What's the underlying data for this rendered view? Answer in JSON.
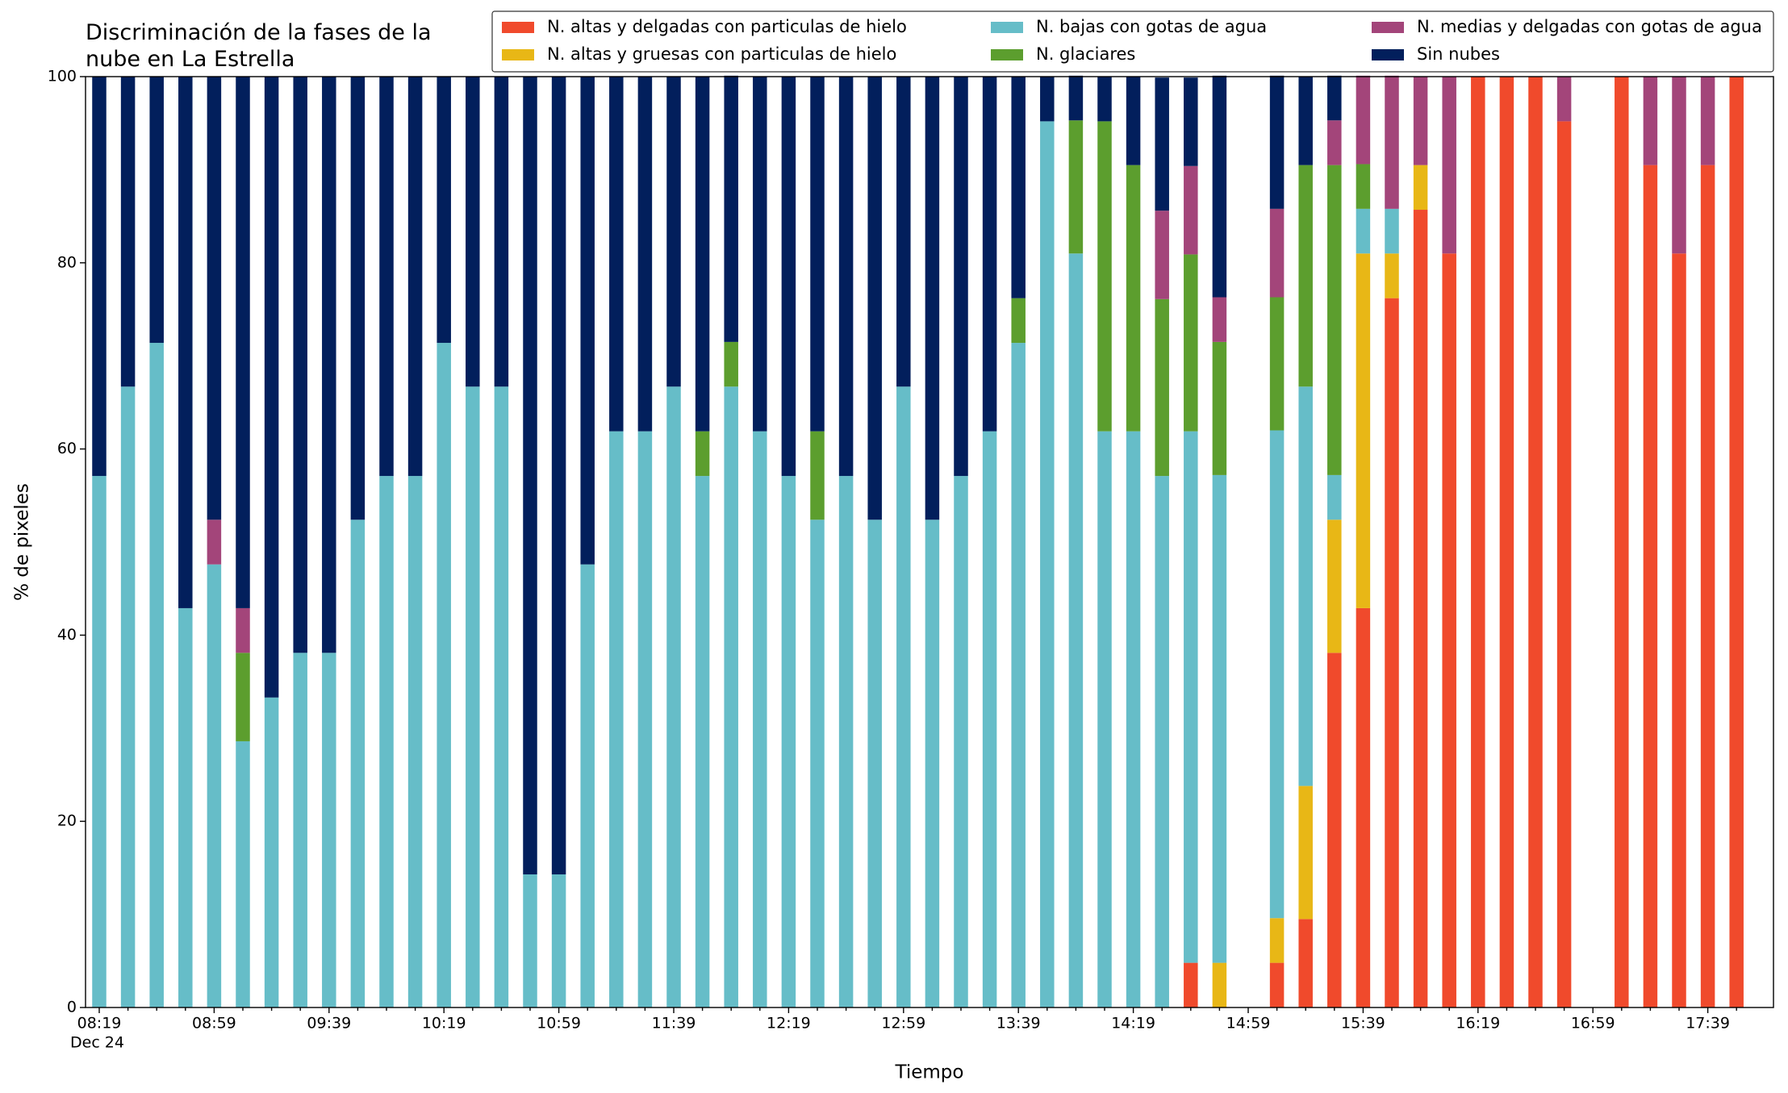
{
  "chart_data": {
    "type": "stacked_bar",
    "title": "Discriminación de la fases de la nube en La Estrella",
    "title_lines": [
      "Discriminación de la fases de la",
      "nube en La Estrella"
    ],
    "xlabel": "Tiempo",
    "ylabel": "% de pixeles",
    "x_sublabel": "Dec 24",
    "categories": [
      "08:19",
      null,
      null,
      null,
      "08:59",
      null,
      null,
      null,
      "09:39",
      null,
      null,
      null,
      "10:19",
      null,
      null,
      null,
      "10:59",
      null,
      null,
      null,
      "11:39",
      null,
      null,
      null,
      "12:19",
      null,
      null,
      null,
      "12:59",
      null,
      null,
      null,
      "13:39",
      null,
      null,
      null,
      "14:19",
      null,
      null,
      null,
      "14:59",
      null,
      null,
      null,
      "15:39",
      null,
      null,
      null,
      "16:19",
      null,
      null,
      null,
      "16:59",
      null,
      null,
      null,
      "17:39",
      null
    ],
    "ylim": [
      0,
      100
    ],
    "yticks": [
      0,
      20,
      40,
      60,
      80,
      100
    ],
    "legend": "top-right",
    "series": [
      {
        "name": "N. altas y delgadas con particulas de hielo",
        "color": "#f04a2c",
        "values": [
          0,
          0,
          0,
          0,
          0,
          0,
          0,
          0,
          0,
          0,
          0,
          0,
          0,
          0,
          0,
          0,
          0,
          0,
          0,
          0,
          0,
          0,
          0,
          0,
          0,
          0,
          0,
          0,
          0,
          0,
          0,
          0,
          0,
          0,
          0,
          0,
          0,
          0,
          4.8,
          0,
          0,
          4.8,
          9.5,
          38.1,
          42.9,
          76.2,
          85.7,
          81,
          100,
          100,
          100,
          95.2,
          0,
          100,
          90.5,
          81,
          90.5,
          100
        ]
      },
      {
        "name": "N. altas y gruesas con particulas de hielo",
        "color": "#e8b716",
        "values": [
          0,
          0,
          0,
          0,
          0,
          0,
          0,
          0,
          0,
          0,
          0,
          0,
          0,
          0,
          0,
          0,
          0,
          0,
          0,
          0,
          0,
          0,
          0,
          0,
          0,
          0,
          0,
          0,
          0,
          0,
          0,
          0,
          0,
          0,
          0,
          0,
          0,
          0,
          0,
          4.8,
          0,
          4.8,
          14.3,
          14.3,
          38.1,
          4.8,
          4.8,
          0,
          0,
          0,
          0,
          0,
          0,
          0,
          0,
          0,
          0,
          0
        ]
      },
      {
        "name": "N. bajas con gotas de agua",
        "color": "#66bdc8",
        "values": [
          57.1,
          66.7,
          71.4,
          42.9,
          47.6,
          28.6,
          33.3,
          38.1,
          38.1,
          52.4,
          57.1,
          57.1,
          71.4,
          66.7,
          66.7,
          14.3,
          14.3,
          47.6,
          61.9,
          61.9,
          66.7,
          57.1,
          66.7,
          61.9,
          57.1,
          52.4,
          57.1,
          52.4,
          66.7,
          52.4,
          57.1,
          61.9,
          71.4,
          95.2,
          81,
          61.9,
          61.9,
          57.1,
          57.1,
          52.4,
          0,
          52.4,
          42.9,
          4.8,
          4.8,
          4.8,
          0,
          0,
          0,
          0,
          0,
          0,
          0,
          0,
          0,
          0,
          0,
          0
        ]
      },
      {
        "name": "N. glaciares",
        "color": "#5c9e2e",
        "values": [
          0,
          0,
          0,
          0,
          0,
          9.5,
          0,
          0,
          0,
          0,
          0,
          0,
          0,
          0,
          0,
          0,
          0,
          0,
          0,
          0,
          0,
          4.8,
          4.8,
          0,
          0,
          9.5,
          0,
          0,
          0,
          0,
          0,
          0,
          4.8,
          0,
          14.3,
          33.3,
          28.6,
          19,
          19,
          14.3,
          0,
          14.3,
          23.8,
          33.3,
          4.8,
          0,
          0,
          0,
          0,
          0,
          0,
          0,
          0,
          0,
          0,
          0,
          0,
          0
        ]
      },
      {
        "name": "N. medias y delgadas con gotas de agua",
        "color": "#a3457a",
        "values": [
          0,
          0,
          0,
          0,
          4.8,
          4.8,
          0,
          0,
          0,
          0,
          0,
          0,
          0,
          0,
          0,
          0,
          0,
          0,
          0,
          0,
          0,
          0,
          0,
          0,
          0,
          0,
          0,
          0,
          0,
          0,
          0,
          0,
          0,
          0,
          0,
          0,
          0,
          9.5,
          9.5,
          4.8,
          0,
          9.5,
          0,
          4.8,
          9.5,
          14.3,
          9.5,
          19,
          0,
          0,
          0,
          4.8,
          0,
          0,
          9.5,
          19,
          9.5,
          0
        ]
      },
      {
        "name": "Sin nubes",
        "color": "#021f5c",
        "values": [
          42.9,
          33.3,
          28.6,
          57.1,
          47.6,
          57.1,
          66.7,
          61.9,
          61.9,
          47.6,
          42.9,
          42.9,
          28.6,
          33.3,
          33.3,
          85.7,
          85.7,
          52.4,
          38.1,
          38.1,
          33.3,
          38.1,
          28.6,
          38.1,
          42.9,
          38.1,
          42.9,
          47.6,
          33.3,
          47.6,
          42.9,
          38.1,
          23.8,
          4.8,
          4.8,
          4.8,
          9.5,
          14.3,
          9.5,
          23.8,
          0,
          14.3,
          9.5,
          4.8,
          0,
          0,
          0,
          0,
          0,
          0,
          0,
          0,
          0,
          0,
          0,
          0,
          0,
          0
        ]
      }
    ]
  }
}
